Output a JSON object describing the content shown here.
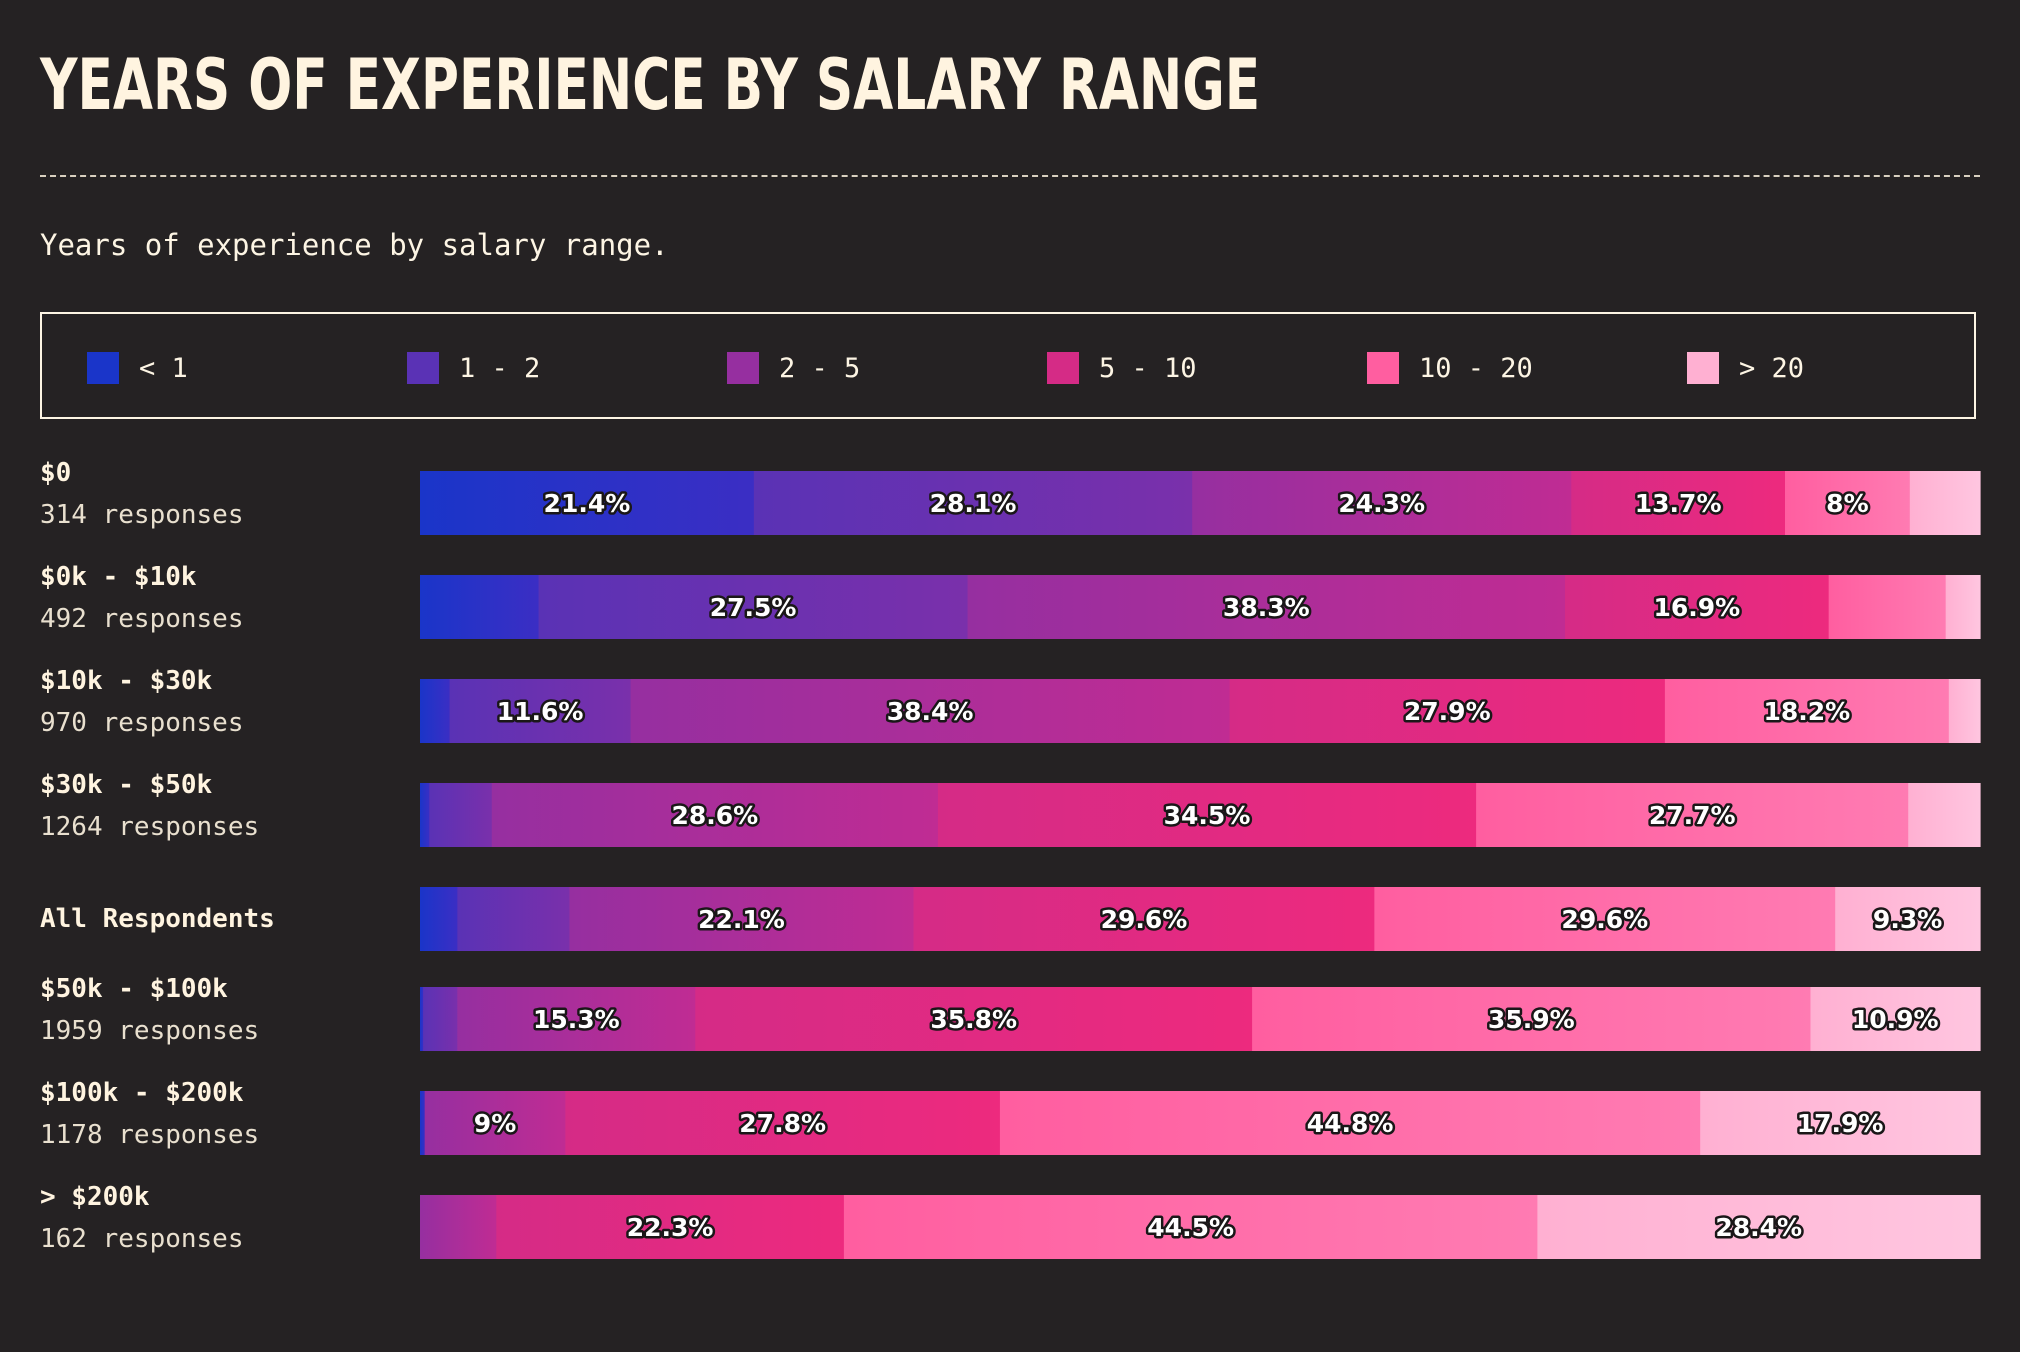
{
  "title": "YEARS OF EXPERIENCE BY SALARY RANGE",
  "subtitle": "Years of experience by salary range.",
  "chart_data": {
    "type": "bar",
    "orientation": "horizontal",
    "stacked": true,
    "normalized": true,
    "legend_position": "top",
    "series": [
      {
        "name": "< 1",
        "color": "#1a35c9"
      },
      {
        "name": "1 - 2",
        "color": "#5a32b5"
      },
      {
        "name": "2 - 5",
        "color": "#962fa0"
      },
      {
        "name": "5 - 10",
        "color": "#d52b86"
      },
      {
        "name": "10 - 20",
        "color": "#ff5ea0"
      },
      {
        "name": "> 20",
        "color": "#ffb0d2"
      }
    ],
    "categories": [
      {
        "name": "$0",
        "responses": "314 responses",
        "values": [
          21.4,
          28.1,
          24.3,
          13.7,
          8.0,
          4.5
        ],
        "labels": [
          "21.4%",
          "28.1%",
          "24.3%",
          "13.7%",
          "8%",
          ""
        ]
      },
      {
        "name": "$0k - $10k",
        "responses": "492 responses",
        "values": [
          7.6,
          27.5,
          38.3,
          16.9,
          7.5,
          2.2
        ],
        "labels": [
          "",
          "27.5%",
          "38.3%",
          "16.9%",
          "",
          ""
        ]
      },
      {
        "name": "$10k - $30k",
        "responses": "970 responses",
        "values": [
          1.9,
          11.6,
          38.4,
          27.9,
          18.2,
          2.0
        ],
        "labels": [
          "",
          "11.6%",
          "38.4%",
          "27.9%",
          "18.2%",
          ""
        ]
      },
      {
        "name": "$30k - $50k",
        "responses": "1264 responses",
        "values": [
          0.6,
          4.0,
          28.6,
          34.5,
          27.7,
          4.6
        ],
        "labels": [
          "",
          "",
          "28.6%",
          "34.5%",
          "27.7%",
          ""
        ]
      },
      {
        "name": "All Respondents",
        "responses": "",
        "values": [
          2.4,
          7.2,
          22.1,
          29.6,
          29.6,
          9.3
        ],
        "labels": [
          "",
          "",
          "22.1%",
          "29.6%",
          "29.6%",
          "9.3%"
        ]
      },
      {
        "name": "$50k - $100k",
        "responses": "1959 responses",
        "values": [
          0.2,
          2.2,
          15.3,
          35.8,
          35.9,
          10.9
        ],
        "labels": [
          "",
          "",
          "15.3%",
          "35.8%",
          "35.9%",
          "10.9%"
        ]
      },
      {
        "name": "$100k - $200k",
        "responses": "1178 responses",
        "values": [
          0.3,
          9.0,
          27.8,
          44.8,
          17.9
        ],
        "labels": [
          "",
          "9%",
          "27.8%",
          "44.8%",
          "17.9%"
        ],
        "series_index": [
          0,
          2,
          3,
          4,
          5
        ]
      },
      {
        "name": "> $200k",
        "responses": "162 responses",
        "values": [
          4.9,
          22.3,
          44.5,
          28.4
        ],
        "labels": [
          "",
          "22.3%",
          "44.5%",
          "28.4%"
        ],
        "series_index": [
          2,
          3,
          4,
          5
        ]
      }
    ],
    "xlim": [
      0,
      100
    ]
  }
}
